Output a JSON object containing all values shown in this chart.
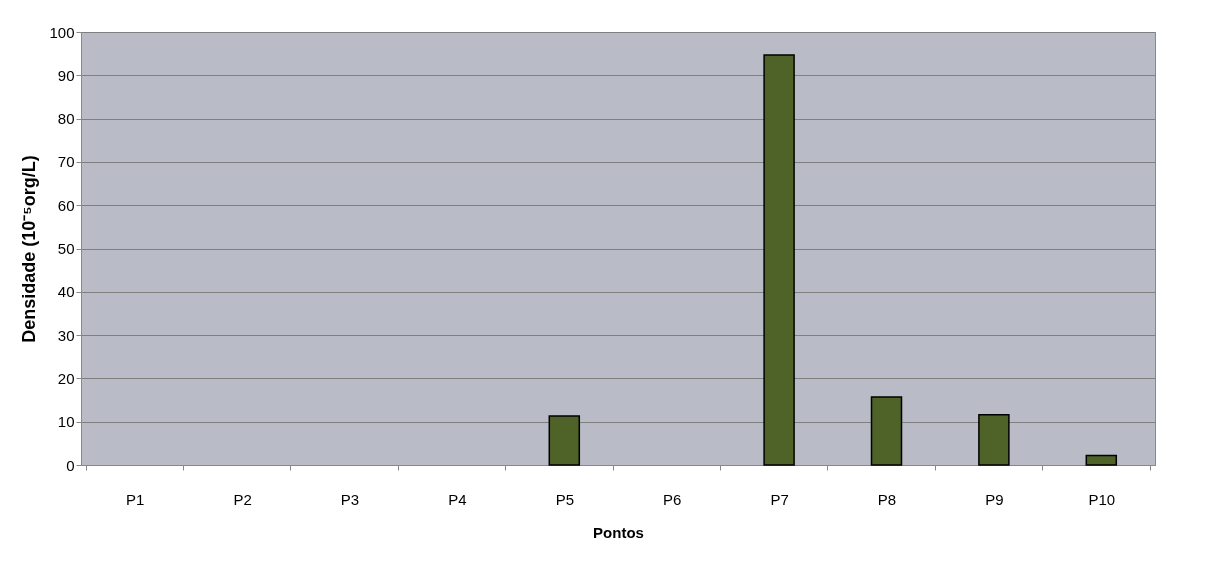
{
  "chart_data": {
    "type": "bar",
    "xlabel": "Pontos",
    "ylabel": "Densidade (10⁻⁵org/L)",
    "categories": [
      "P1",
      "P2",
      "P3",
      "P4",
      "P5",
      "P6",
      "P7",
      "P8",
      "P9",
      "P10"
    ],
    "values": [
      0,
      0,
      0,
      0,
      11.3,
      0,
      94.7,
      15.7,
      11.6,
      2.2
    ],
    "color": "#4f6228",
    "ylim": [
      0,
      100
    ],
    "yticks": [
      0,
      10,
      20,
      30,
      40,
      50,
      60,
      70,
      80,
      90,
      100
    ],
    "grid": "y"
  }
}
